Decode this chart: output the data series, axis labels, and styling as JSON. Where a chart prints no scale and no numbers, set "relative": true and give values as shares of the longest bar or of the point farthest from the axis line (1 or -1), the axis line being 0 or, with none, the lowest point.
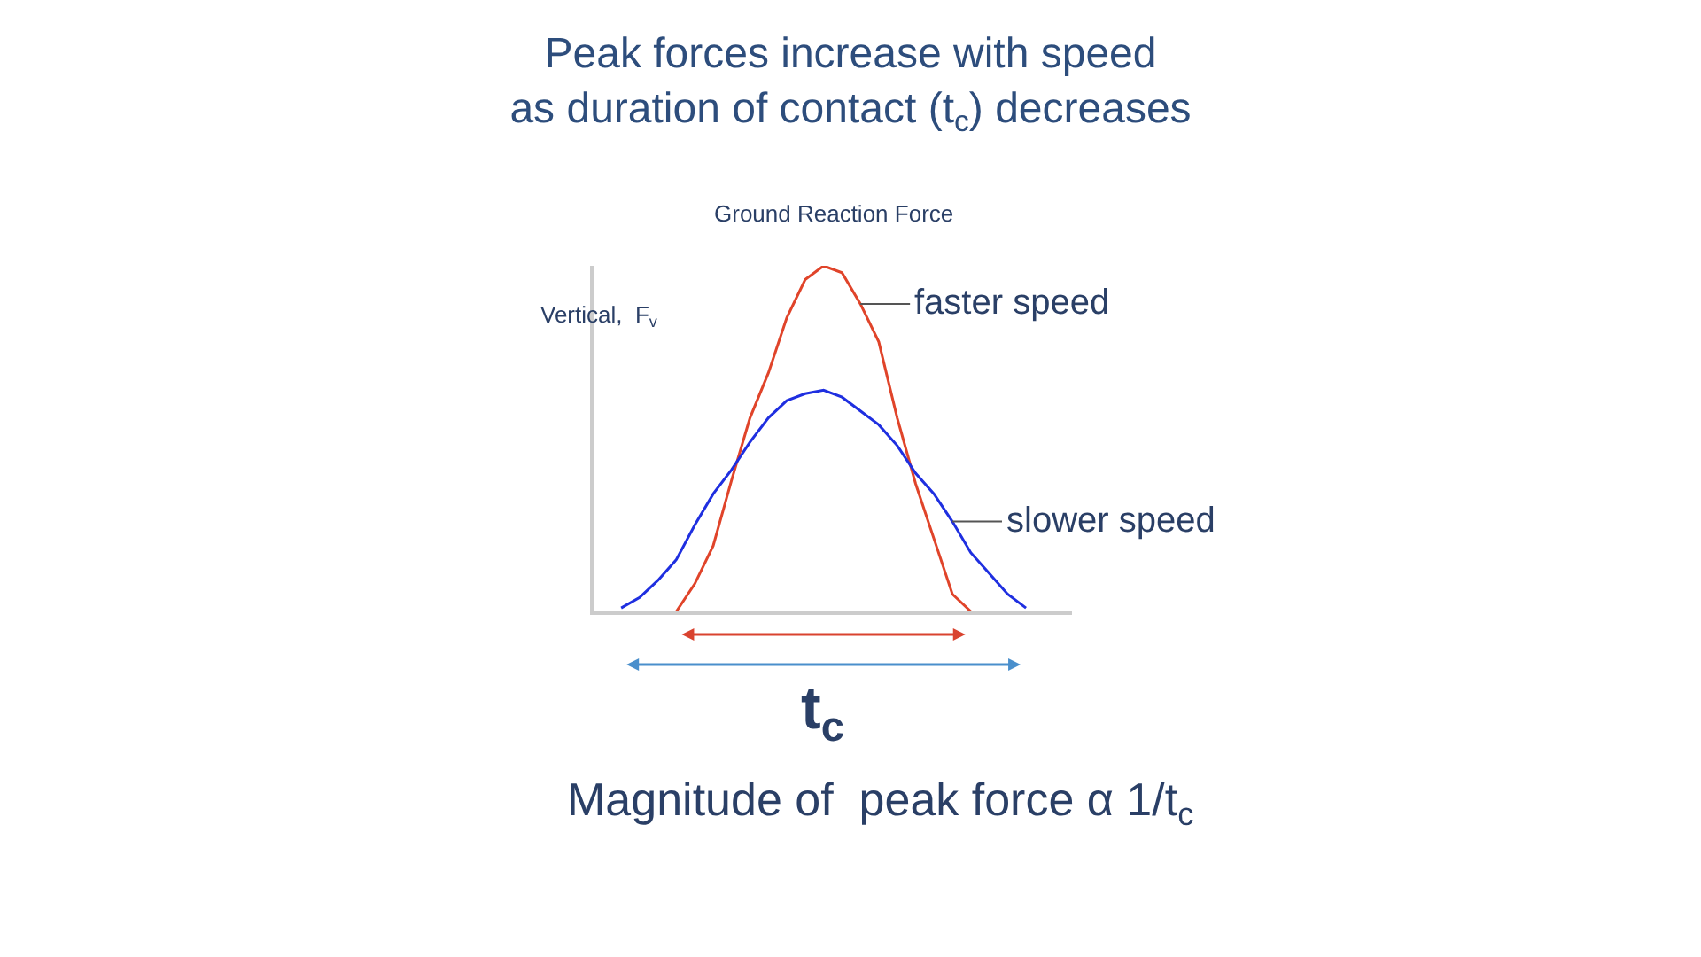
{
  "chart_data": {
    "type": "line",
    "relative": true,
    "title": "Peak forces increase with speed\nas duration of contact (t$_{c}$) decreases",
    "subtitle": "Ground Reaction Force",
    "ylabel": "Vertical,  F$_{v}$",
    "categories": [
      null,
      null,
      null,
      null,
      null,
      null,
      null,
      null,
      null,
      null,
      null,
      null,
      null,
      null,
      null,
      null,
      null,
      null,
      null,
      null,
      null,
      null,
      null,
      null,
      null,
      null
    ],
    "series": [
      {
        "name": "faster speed",
        "color": "#e0442a",
        "values": [
          null,
          null,
          null,
          null,
          0,
          0.08,
          0.19,
          0.38,
          0.56,
          0.69,
          0.85,
          0.96,
          1,
          0.98,
          0.89,
          0.78,
          0.56,
          0.37,
          0.21,
          0.05,
          0,
          null,
          null,
          null,
          null,
          null
        ]
      },
      {
        "name": "slower speed",
        "color": "#1f2fe0",
        "values": [
          null,
          0.01,
          0.04,
          0.09,
          0.15,
          0.25,
          0.34,
          0.41,
          0.49,
          0.56,
          0.61,
          0.63,
          0.64,
          0.62,
          0.58,
          0.54,
          0.48,
          0.4,
          0.34,
          0.26,
          0.17,
          0.11,
          0.05,
          0.01,
          null,
          null
        ]
      }
    ],
    "annotations": [
      "t$_{c}$",
      "Magnitude of  peak force α 1/t$_{c}$"
    ],
    "grid": false,
    "legend": false,
    "marker": "none",
    "line_style": "solid"
  }
}
